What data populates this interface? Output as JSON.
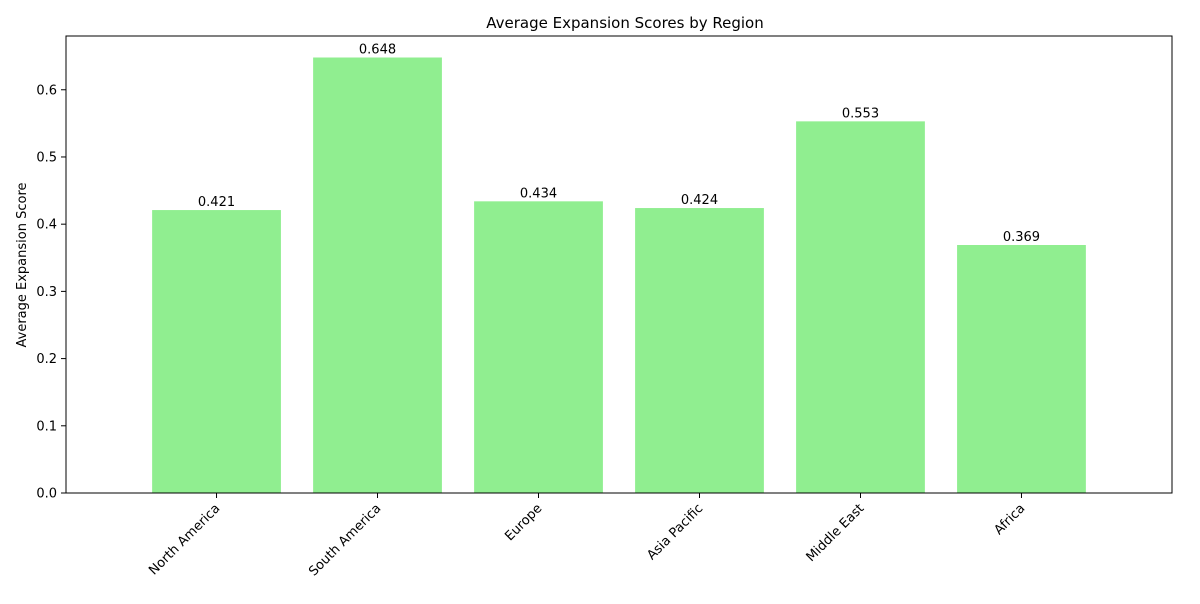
{
  "chart_data": {
    "type": "bar",
    "title": "Average Expansion Scores by Region",
    "xlabel": "",
    "ylabel": "Average Expansion Score",
    "categories": [
      "North America",
      "South America",
      "Europe",
      "Asia Pacific",
      "Middle East",
      "Africa"
    ],
    "values": [
      0.421,
      0.648,
      0.434,
      0.424,
      0.553,
      0.369
    ],
    "value_labels": [
      "0.421",
      "0.648",
      "0.434",
      "0.424",
      "0.553",
      "0.369"
    ],
    "ylim": [
      0,
      0.68
    ],
    "yticks": [
      0.0,
      0.1,
      0.2,
      0.3,
      0.4,
      0.5,
      0.6
    ],
    "ytick_labels": [
      "0.0",
      "0.1",
      "0.2",
      "0.3",
      "0.4",
      "0.5",
      "0.6"
    ],
    "bar_color": "#90ee90",
    "grid": false,
    "legend": false
  }
}
